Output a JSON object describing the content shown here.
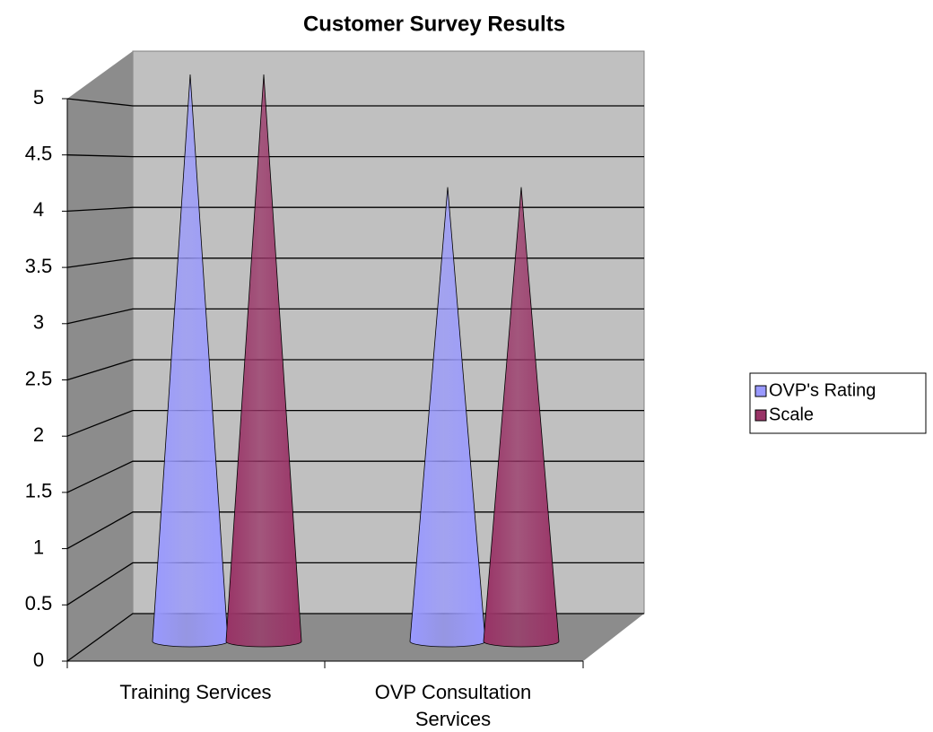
{
  "chart_data": {
    "type": "cone",
    "title": "Customer Survey Results",
    "categories": [
      "Training Services",
      "OVP Consultation Services"
    ],
    "series": [
      {
        "name": "OVP's Rating",
        "color": "#9999ff",
        "values": [
          5,
          4
        ]
      },
      {
        "name": "Scale",
        "color": "#993366",
        "values": [
          5,
          4
        ]
      }
    ],
    "ylim": [
      0,
      5
    ],
    "yticks": [
      0,
      0.5,
      1,
      1.5,
      2,
      2.5,
      3,
      3.5,
      4,
      4.5,
      5
    ],
    "grid": true,
    "legend": "right"
  }
}
